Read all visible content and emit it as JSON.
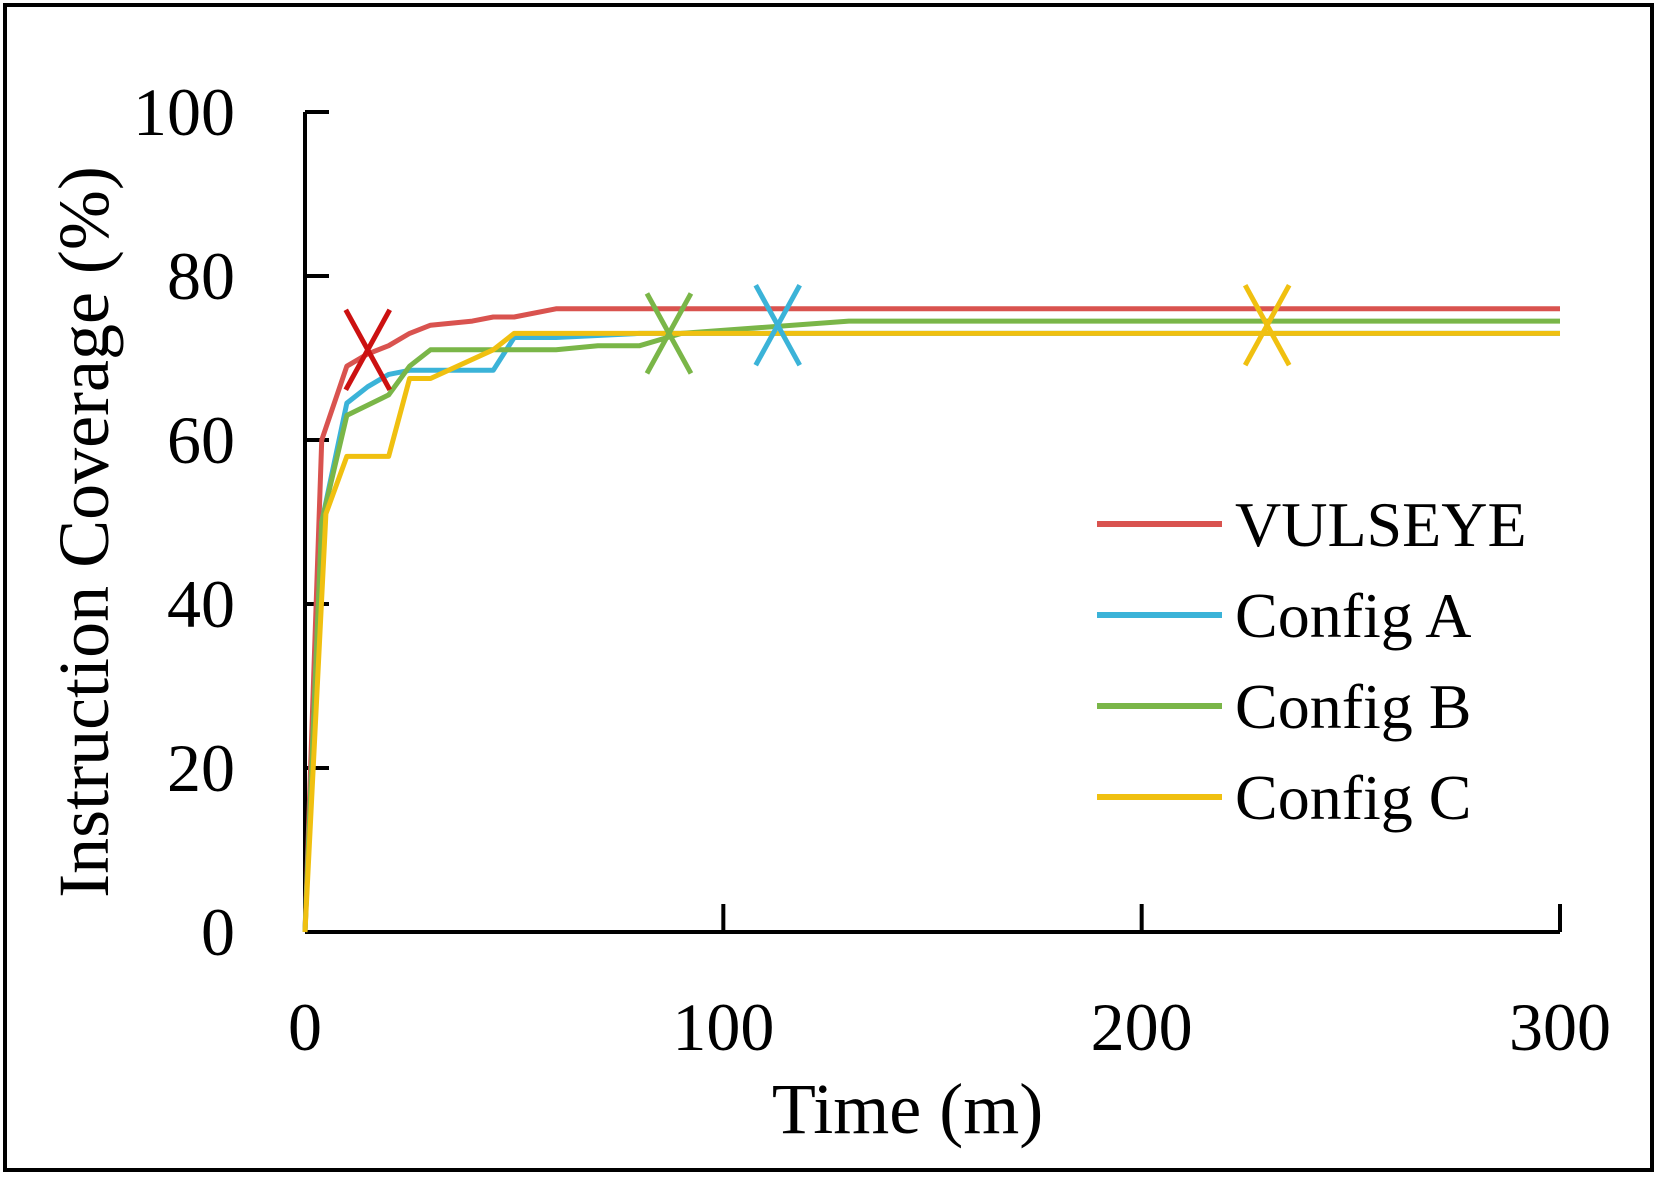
{
  "chart_data": {
    "type": "line",
    "title": "",
    "xlabel": "Time (m)",
    "ylabel": "Instruction  Coverage (%)",
    "xlim": [
      0,
      300
    ],
    "ylim": [
      0,
      100
    ],
    "xticks": [
      0,
      100,
      200,
      300
    ],
    "yticks": [
      0,
      20,
      40,
      60,
      80,
      100
    ],
    "x_tick_labels": [
      "0",
      "100",
      "200",
      "300"
    ],
    "y_tick_labels": [
      "0",
      "20",
      "40",
      "60",
      "80",
      "100"
    ],
    "legend_position": "right",
    "grid": false,
    "series": [
      {
        "name": "VULSEYE",
        "color": "#d9534f",
        "x": [
          0,
          4,
          10,
          15,
          20,
          25,
          30,
          40,
          45,
          50,
          60,
          300
        ],
        "y": [
          0,
          60,
          69,
          70.5,
          71.5,
          73,
          74,
          74.5,
          75,
          75,
          76,
          76
        ],
        "marker": {
          "x": 15,
          "y": 71
        }
      },
      {
        "name": "Config A",
        "color": "#3bb3d8",
        "x": [
          0,
          4,
          10,
          15,
          20,
          25,
          45,
          50,
          60,
          80,
          300
        ],
        "y": [
          0,
          50,
          64.5,
          66.5,
          68,
          68.5,
          68.5,
          72.5,
          72.5,
          73,
          73
        ],
        "marker": {
          "x": 113,
          "y": 74
        }
      },
      {
        "name": "Config B",
        "color": "#7ab648",
        "x": [
          0,
          4,
          10,
          20,
          25,
          30,
          60,
          70,
          80,
          90,
          130,
          300
        ],
        "y": [
          0,
          50,
          63,
          65.5,
          69,
          71,
          71,
          71.5,
          71.5,
          73,
          74.5,
          74.5
        ],
        "marker": {
          "x": 87,
          "y": 73
        }
      },
      {
        "name": "Config C",
        "color": "#f0c010",
        "x": [
          0,
          5,
          10,
          20,
          25,
          30,
          45,
          50,
          300
        ],
        "y": [
          0,
          51,
          58,
          58,
          67.5,
          67.5,
          71,
          73,
          73
        ],
        "marker": {
          "x": 230,
          "y": 74
        }
      }
    ]
  }
}
